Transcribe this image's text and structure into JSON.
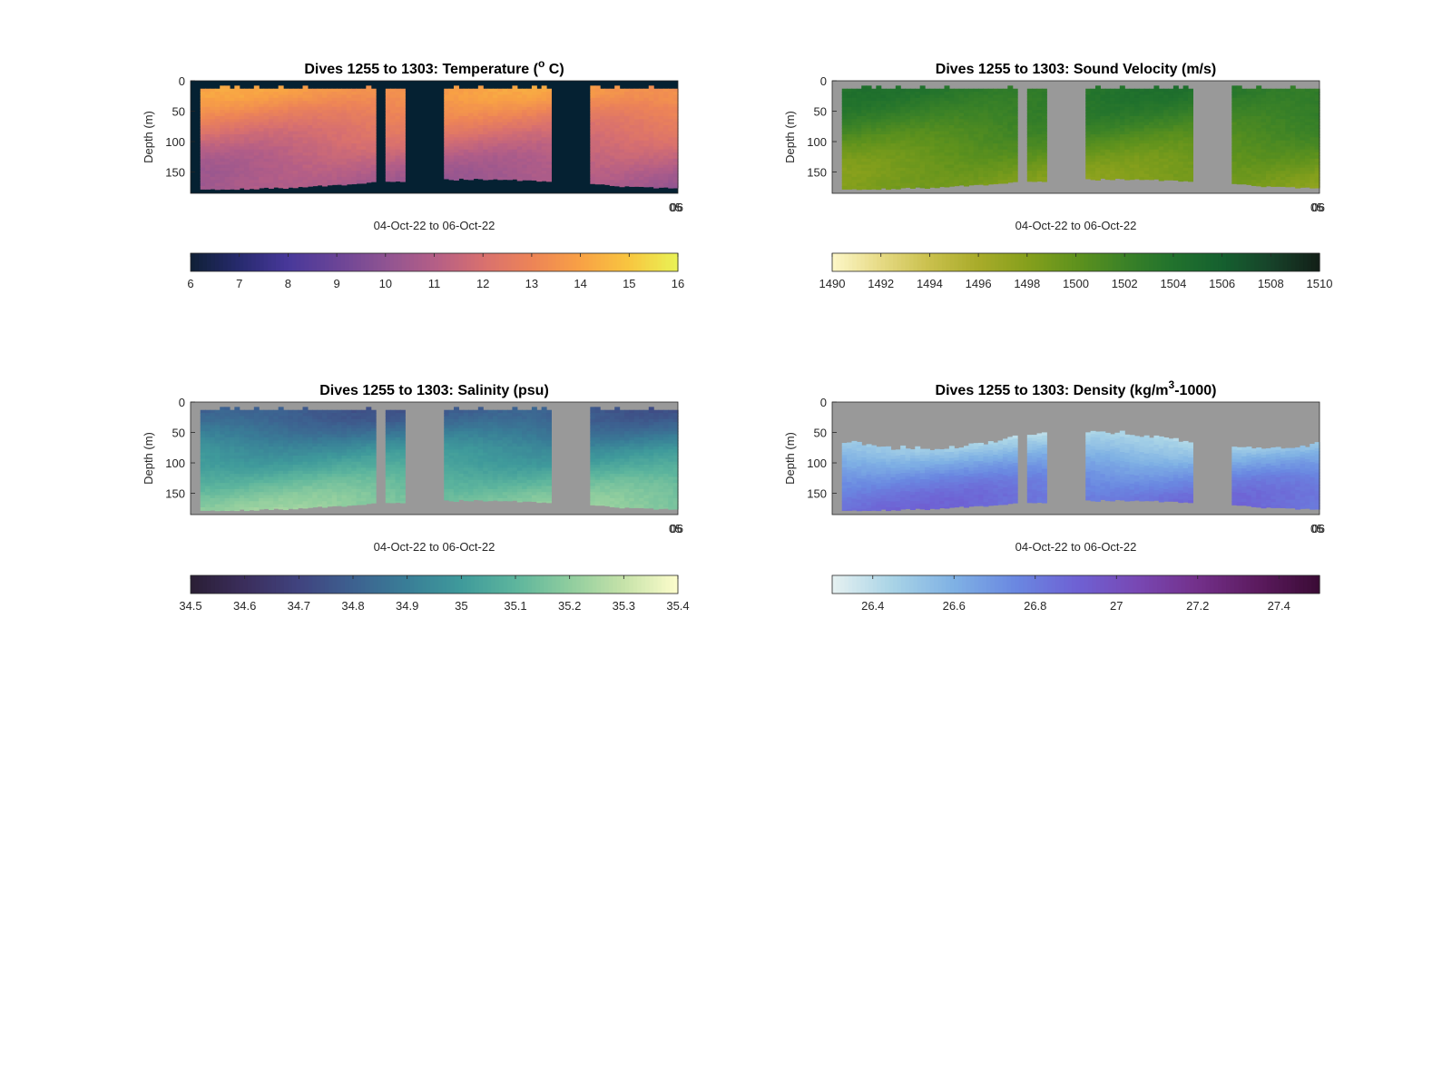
{
  "chart_data": [
    {
      "type": "heatmap",
      "title_parts": [
        "Dives 1255 to 1303: Temperature (",
        "o",
        " C)"
      ],
      "ylabel": "Depth (m)",
      "xlabel": "04-Oct-22 to 06-Oct-22",
      "ylim": [
        0,
        185
      ],
      "yticks": [
        "0",
        "50",
        "100",
        "150"
      ],
      "ytick_values": [
        0,
        50,
        100,
        150
      ],
      "xtick_overlap": [
        "05",
        "06"
      ],
      "colorbar": {
        "range": [
          6,
          16
        ],
        "ticks": [
          "6",
          "7",
          "8",
          "9",
          "10",
          "11",
          "12",
          "13",
          "14",
          "15",
          "16"
        ],
        "tick_values": [
          6,
          7,
          8,
          9,
          10,
          11,
          12,
          13,
          14,
          15,
          16
        ]
      },
      "colormap": [
        "#0f2036",
        "#272a6e",
        "#48389a",
        "#6a4497",
        "#8f5492",
        "#b35e87",
        "#d8706f",
        "#ed8457",
        "#f8a145",
        "#f8c640",
        "#e9f355"
      ],
      "background": "#052132",
      "depth_profile": {
        "depths": [
          0,
          25,
          50,
          75,
          100,
          125,
          150,
          175
        ],
        "values": [
          13.9,
          13.7,
          13.0,
          12.3,
          11.7,
          11.1,
          10.7,
          10.5
        ]
      }
    },
    {
      "type": "heatmap",
      "title_parts": [
        "Dives 1255 to 1303: Sound Velocity (m/s)"
      ],
      "ylabel": "Depth (m)",
      "xlabel": "04-Oct-22 to 06-Oct-22",
      "ylim": [
        0,
        185
      ],
      "yticks": [
        "0",
        "50",
        "100",
        "150"
      ],
      "ytick_values": [
        0,
        50,
        100,
        150
      ],
      "xtick_overlap": [
        "05",
        "06"
      ],
      "colorbar": {
        "range": [
          1490,
          1510
        ],
        "ticks": [
          "1490",
          "1492",
          "1494",
          "1496",
          "1498",
          "1500",
          "1502",
          "1504",
          "1506",
          "1508",
          "1510"
        ],
        "tick_values": [
          1490,
          1492,
          1494,
          1496,
          1498,
          1500,
          1502,
          1504,
          1506,
          1508,
          1510
        ]
      },
      "colormap": [
        "#fdf7c8",
        "#e6da84",
        "#c9c04c",
        "#a8ab2a",
        "#86a01c",
        "#5f921d",
        "#3b8227",
        "#21722d",
        "#15602f",
        "#17432a",
        "#121e17"
      ],
      "background": "#999999",
      "depth_profile": {
        "depths": [
          0,
          25,
          50,
          75,
          100,
          125,
          150,
          175
        ],
        "values": [
          1503.7,
          1503.4,
          1502.7,
          1501.6,
          1500.5,
          1499.4,
          1498.6,
          1498.2
        ]
      }
    },
    {
      "type": "heatmap",
      "title_parts": [
        "Dives 1255 to 1303: Salinity (psu)"
      ],
      "ylabel": "Depth (m)",
      "xlabel": "04-Oct-22 to 06-Oct-22",
      "ylim": [
        0,
        185
      ],
      "yticks": [
        "0",
        "50",
        "100",
        "150"
      ],
      "ytick_values": [
        0,
        50,
        100,
        150
      ],
      "xtick_overlap": [
        "05",
        "06"
      ],
      "colorbar": {
        "range": [
          34.5,
          35.4
        ],
        "ticks": [
          "34.5",
          "34.6",
          "34.7",
          "34.8",
          "34.9",
          "35",
          "35.1",
          "35.2",
          "35.3",
          "35.4"
        ],
        "tick_values": [
          34.5,
          34.6,
          34.7,
          34.8,
          34.9,
          35.0,
          35.1,
          35.2,
          35.3,
          35.4
        ]
      },
      "colormap": [
        "#2a1e34",
        "#3b2e5c",
        "#40437f",
        "#3d6190",
        "#397e97",
        "#3f9a9b",
        "#5db59d",
        "#8fcd9e",
        "#c6e2a9",
        "#fdfdcc"
      ],
      "background": "#999999",
      "depth_profile": {
        "depths": [
          0,
          25,
          50,
          75,
          100,
          125,
          150,
          175
        ],
        "values": [
          34.76,
          34.8,
          34.88,
          34.97,
          35.03,
          35.1,
          35.16,
          35.2
        ]
      }
    },
    {
      "type": "heatmap",
      "title_parts": [
        "Dives 1255 to 1303: Density (kg/m",
        "3",
        "-1000)"
      ],
      "ylabel": "Depth (m)",
      "xlabel": "04-Oct-22 to 06-Oct-22",
      "ylim": [
        0,
        185
      ],
      "yticks": [
        "0",
        "50",
        "100",
        "150"
      ],
      "ytick_values": [
        0,
        50,
        100,
        150
      ],
      "xtick_overlap": [
        "05",
        "06"
      ],
      "colorbar": {
        "range": [
          26.3,
          27.5
        ],
        "ticks": [
          "26.4",
          "26.6",
          "26.8",
          "27",
          "27.2",
          "27.4"
        ],
        "tick_values": [
          26.4,
          26.6,
          26.8,
          27.0,
          27.2,
          27.4
        ]
      },
      "colormap": [
        "#e6f1f1",
        "#a8d3e6",
        "#7fb1e4",
        "#6a88e1",
        "#6e62d4",
        "#7848b4",
        "#73308a",
        "#5b1a5e",
        "#3a0b35"
      ],
      "background": "#999999",
      "depth_profile": {
        "depths": [
          0,
          25,
          50,
          75,
          100,
          125,
          150,
          175
        ],
        "values": [
          26.3,
          26.34,
          26.4,
          26.52,
          26.65,
          26.76,
          26.83,
          26.86
        ]
      }
    }
  ]
}
